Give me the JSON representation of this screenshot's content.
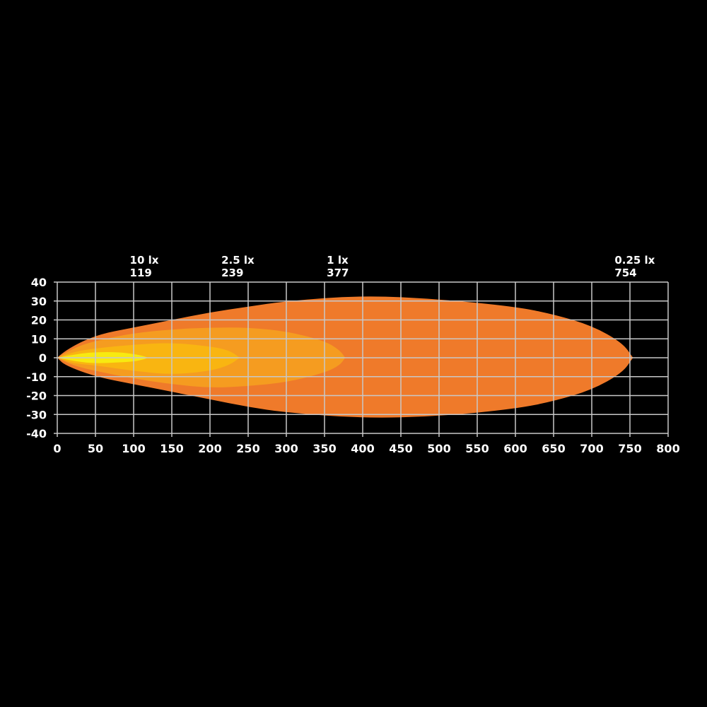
{
  "chart_data": {
    "type": "area",
    "title": "",
    "xlabel": "",
    "ylabel": "",
    "xlim": [
      0,
      800
    ],
    "ylim": [
      -40,
      40
    ],
    "x_ticks": [
      0,
      50,
      100,
      150,
      200,
      250,
      300,
      350,
      400,
      450,
      500,
      550,
      600,
      650,
      700,
      750,
      800
    ],
    "y_ticks": [
      40,
      30,
      20,
      10,
      0,
      -10,
      -20,
      -30,
      -40
    ],
    "grid": true,
    "background": "#000000",
    "grid_color": "#c8c8c8",
    "annotations": [
      {
        "label": "10 lx",
        "value": "119",
        "x": 119
      },
      {
        "label": "2.5 lx",
        "value": "239",
        "x": 239
      },
      {
        "label": "1 lx",
        "value": "377",
        "x": 377
      },
      {
        "label": "0.25 lx",
        "value": "754",
        "x": 754
      }
    ],
    "series": [
      {
        "name": "0.25 lx",
        "color": "#ef7a2a",
        "reach": 754,
        "profile": [
          [
            0,
            0,
            0
          ],
          [
            10,
            4,
            -4
          ],
          [
            50,
            12,
            -10
          ],
          [
            100,
            16,
            -14
          ],
          [
            150,
            20,
            -18
          ],
          [
            200,
            24,
            -22
          ],
          [
            250,
            27,
            -26
          ],
          [
            300,
            30,
            -29
          ],
          [
            400,
            33,
            -32
          ],
          [
            500,
            31,
            -31
          ],
          [
            600,
            27,
            -27
          ],
          [
            650,
            23,
            -23
          ],
          [
            700,
            17,
            -17
          ],
          [
            740,
            8,
            -8
          ],
          [
            754,
            0,
            0
          ]
        ]
      },
      {
        "name": "1 lx",
        "color": "#f59c20",
        "reach": 377,
        "profile": [
          [
            0,
            0,
            0
          ],
          [
            20,
            5,
            -4
          ],
          [
            50,
            9,
            -7
          ],
          [
            100,
            13,
            -11
          ],
          [
            150,
            15,
            -14
          ],
          [
            200,
            16,
            -16
          ],
          [
            250,
            16,
            -15
          ],
          [
            300,
            14,
            -13
          ],
          [
            350,
            9,
            -8
          ],
          [
            370,
            4,
            -4
          ],
          [
            377,
            0,
            0
          ]
        ]
      },
      {
        "name": "2.5 lx",
        "color": "#f9b511",
        "reach": 239,
        "profile": [
          [
            0,
            0,
            0
          ],
          [
            20,
            3,
            -3
          ],
          [
            50,
            5,
            -4
          ],
          [
            100,
            7,
            -7
          ],
          [
            150,
            8,
            -9
          ],
          [
            200,
            6,
            -7
          ],
          [
            225,
            4,
            -4
          ],
          [
            239,
            0,
            0
          ]
        ]
      },
      {
        "name": "10 lx",
        "color": "#f8ea10",
        "reach": 119,
        "profile": [
          [
            0,
            0,
            0
          ],
          [
            25,
            2,
            -2
          ],
          [
            50,
            3,
            -3
          ],
          [
            80,
            3,
            -2.5
          ],
          [
            100,
            2,
            -2
          ],
          [
            112,
            1,
            -1
          ],
          [
            119,
            0,
            0
          ]
        ]
      }
    ]
  }
}
